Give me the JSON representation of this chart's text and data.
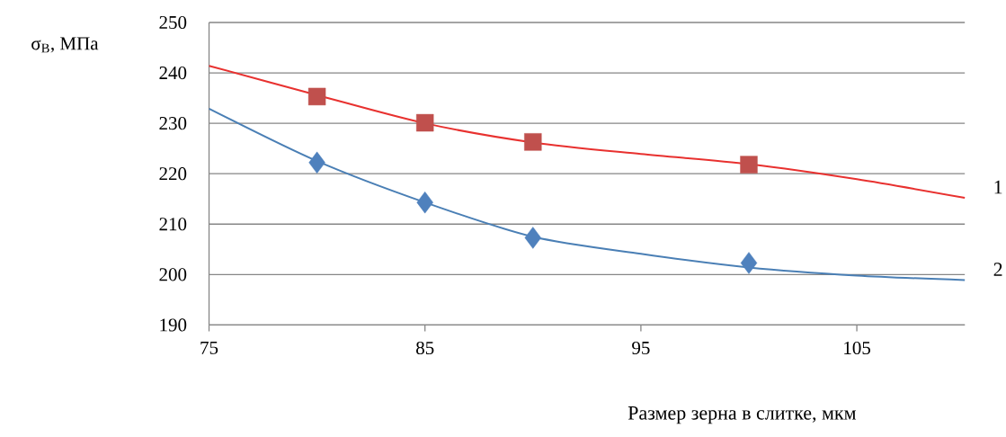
{
  "chart_data": {
    "type": "scatter",
    "ylabel": "σ$_{В}$, МПа",
    "xlabel": "Размер зерна в слитке, мкм",
    "xlim": [
      75,
      110
    ],
    "xticks": [
      75,
      85,
      95,
      105
    ],
    "ylim": [
      190,
      250
    ],
    "yticks": [
      190,
      200,
      210,
      220,
      230,
      240,
      250
    ],
    "grid": "y",
    "legend": false,
    "series": [
      {
        "marker": "square",
        "color": "#c0504d",
        "x": [
          80,
          85,
          90,
          100
        ],
        "values": [
          235.3,
          230.1,
          226.3,
          221.8
        ]
      },
      {
        "marker": "diamond",
        "color": "#4f81bd",
        "x": [
          80,
          85,
          90,
          100
        ],
        "values": [
          222.2,
          214.3,
          207.3,
          202.3
        ]
      },
      {
        "type": "line",
        "name": "1",
        "marker": "none",
        "line_style": "solid",
        "color": "#e8312f",
        "x": [
          75,
          80,
          85,
          90,
          95,
          100,
          105,
          110
        ],
        "values": [
          241.4,
          235.6,
          230.0,
          226.2,
          223.9,
          221.9,
          218.9,
          215.2
        ]
      },
      {
        "type": "line",
        "name": "2",
        "marker": "none",
        "line_style": "solid",
        "color": "#4a7fb5",
        "x": [
          75,
          80,
          85,
          90,
          95,
          100,
          105,
          110
        ],
        "values": [
          232.9,
          222.5,
          214.3,
          207.5,
          204.1,
          201.4,
          199.8,
          198.9
        ]
      }
    ]
  }
}
